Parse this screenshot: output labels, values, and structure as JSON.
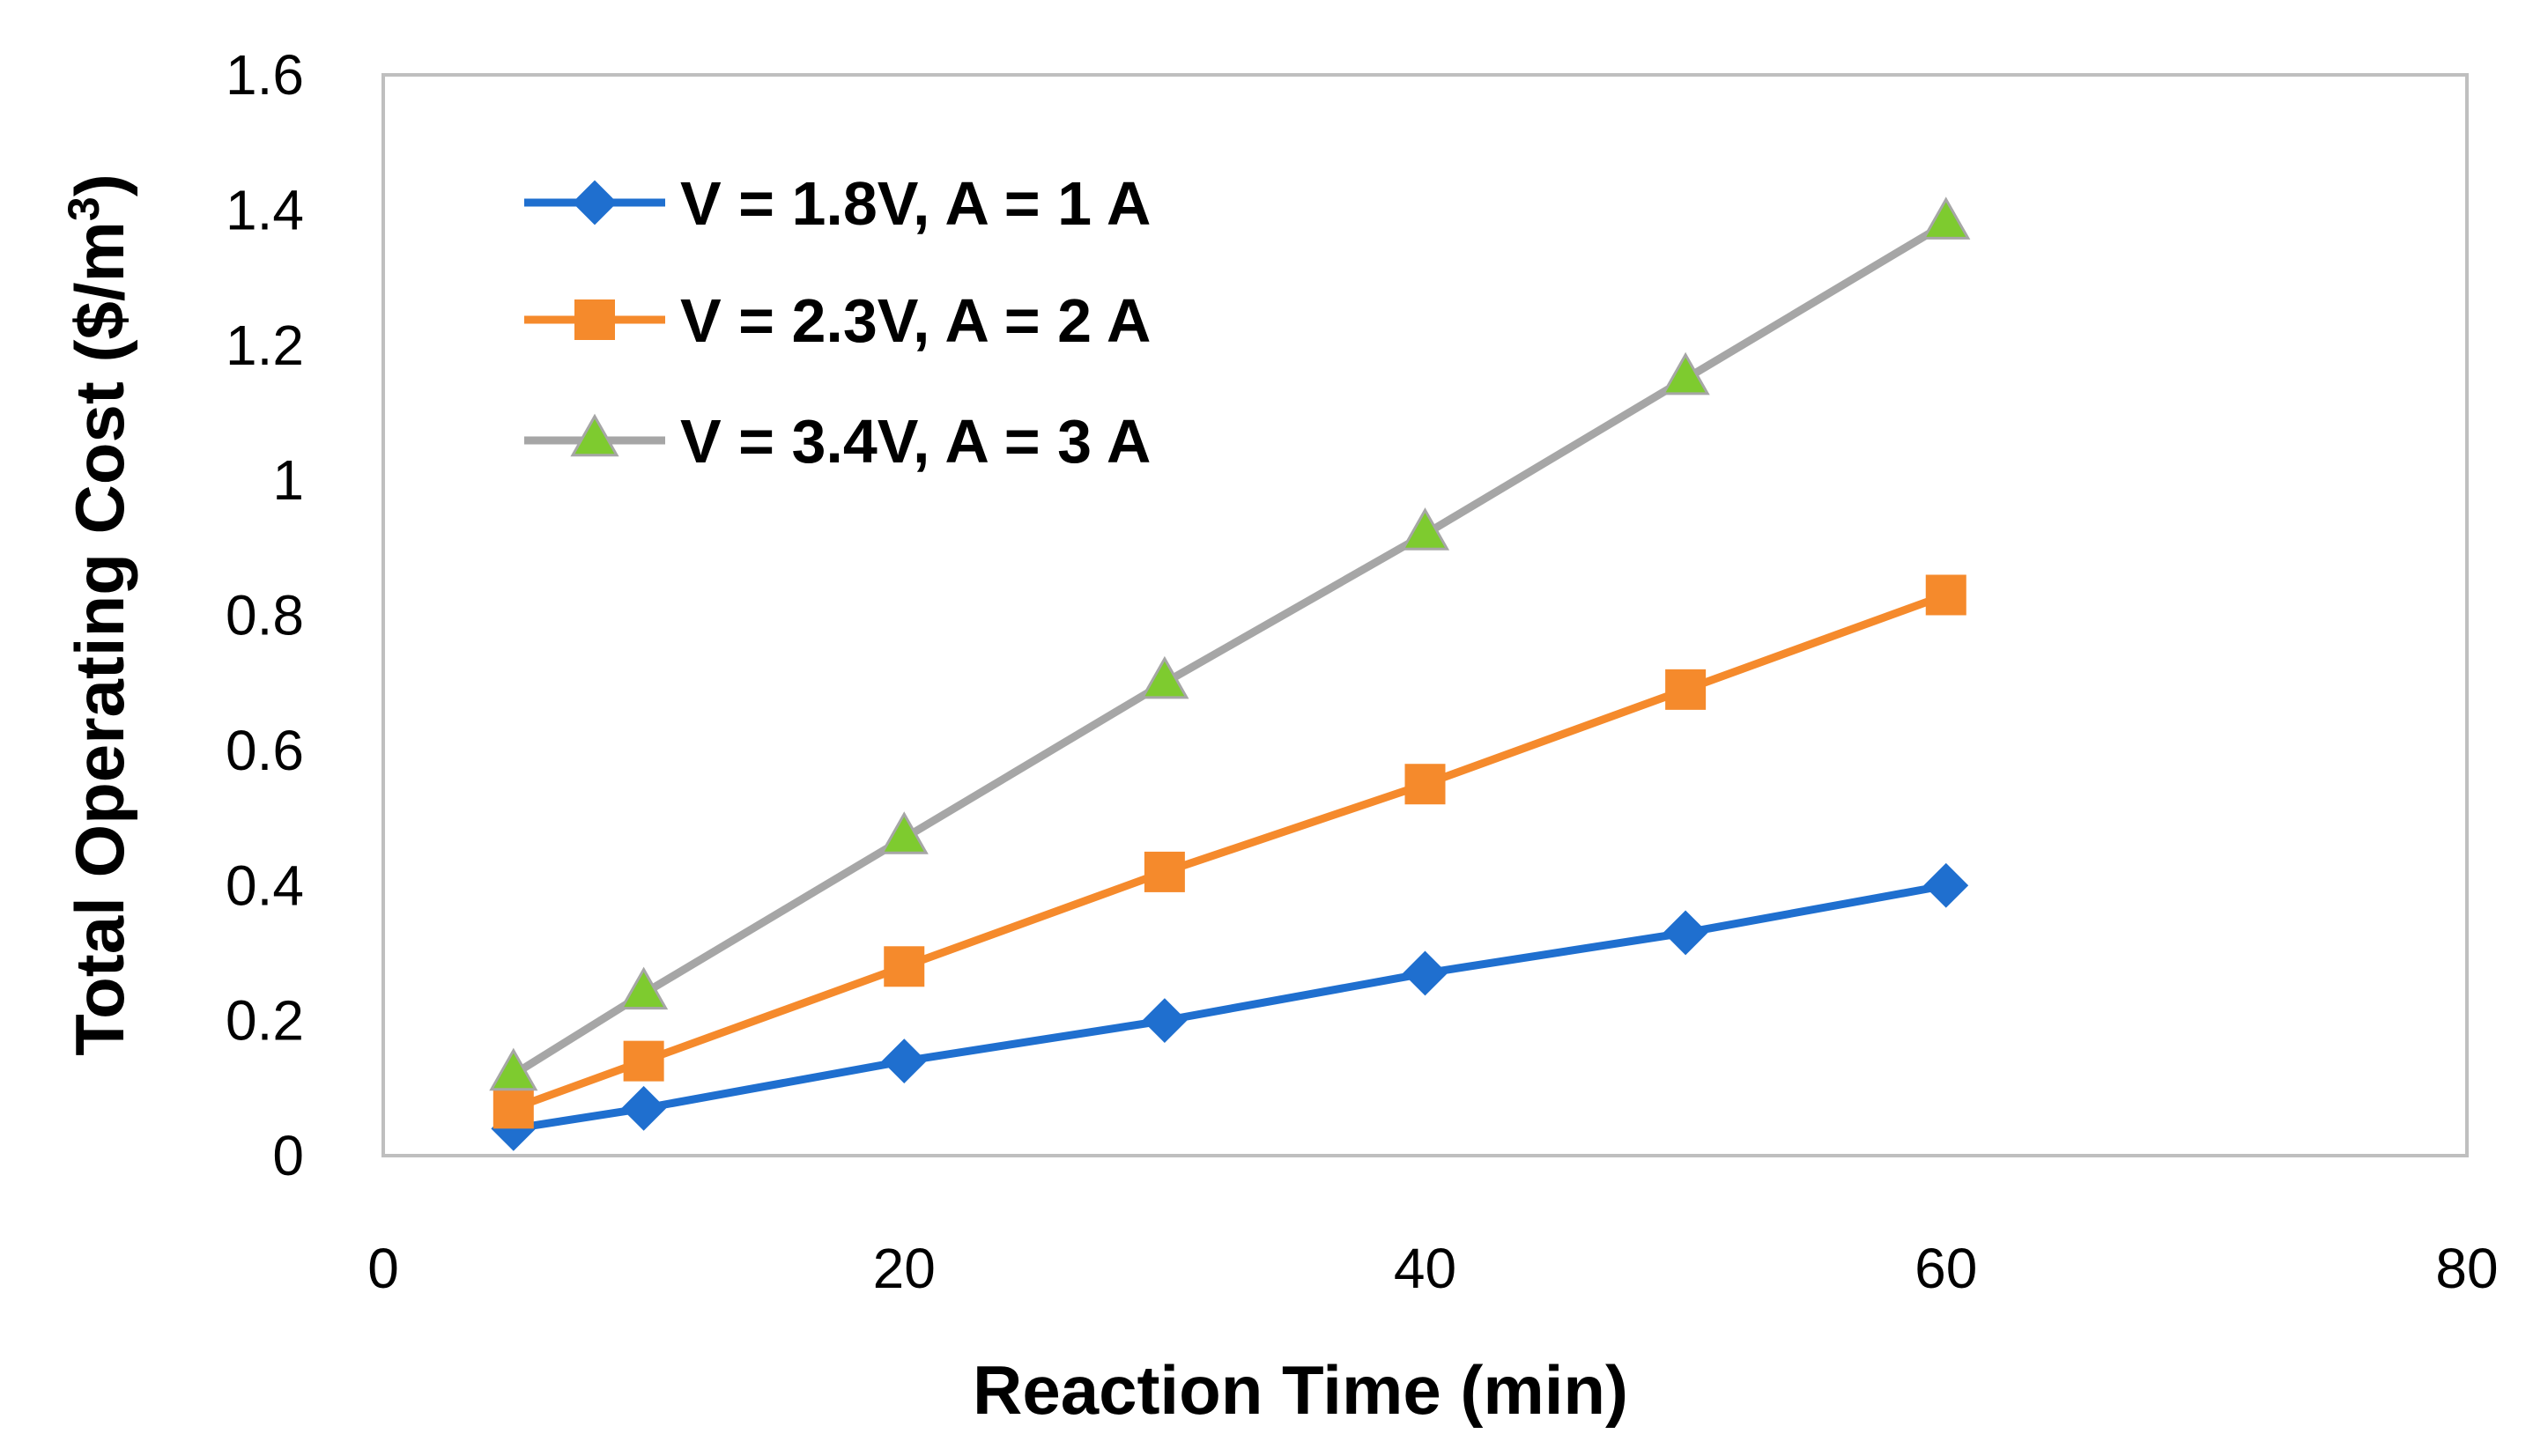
{
  "chart_data": {
    "type": "line",
    "title": "",
    "xlabel": "Reaction Time (min)",
    "ylabel_main": "Total Operating Cost ($/m",
    "ylabel_sup": "3",
    "ylabel_close": ")",
    "xlim": [
      0,
      80
    ],
    "ylim": [
      0,
      1.6
    ],
    "xticks": [
      0,
      20,
      40,
      60,
      80
    ],
    "xtick_labels": [
      "0",
      "20",
      "40",
      "60",
      "80"
    ],
    "yticks": [
      0,
      0.2,
      0.4,
      0.6,
      0.8,
      1,
      1.2,
      1.4,
      1.6
    ],
    "ytick_labels": [
      "0",
      "0.2",
      "0.4",
      "0.6",
      "0.8",
      "1",
      "1.2",
      "1.4",
      "1.6"
    ],
    "grid": false,
    "legend_position": "top-left",
    "series": [
      {
        "name": "V = 1.8V, A = 1 A",
        "color": "#1f6fcf",
        "marker": "diamond",
        "marker_color": "#1f6fcf",
        "x": [
          5,
          10,
          20,
          30,
          40,
          50,
          60
        ],
        "values": [
          0.04,
          0.07,
          0.14,
          0.2,
          0.27,
          0.33,
          0.4
        ]
      },
      {
        "name": "V = 2.3V, A = 2 A",
        "color": "#f58a2c",
        "marker": "square",
        "marker_color": "#f58a2c",
        "x": [
          5,
          10,
          20,
          30,
          40,
          50,
          60
        ],
        "values": [
          0.07,
          0.14,
          0.28,
          0.42,
          0.55,
          0.69,
          0.83
        ]
      },
      {
        "name": "V = 3.4V, A = 3 A",
        "color": "#a6a6a6",
        "marker": "triangle",
        "marker_color": "#7ecb2f",
        "x": [
          5,
          10,
          20,
          30,
          40,
          50,
          60
        ],
        "values": [
          0.12,
          0.24,
          0.47,
          0.7,
          0.92,
          1.15,
          1.38
        ]
      }
    ]
  }
}
